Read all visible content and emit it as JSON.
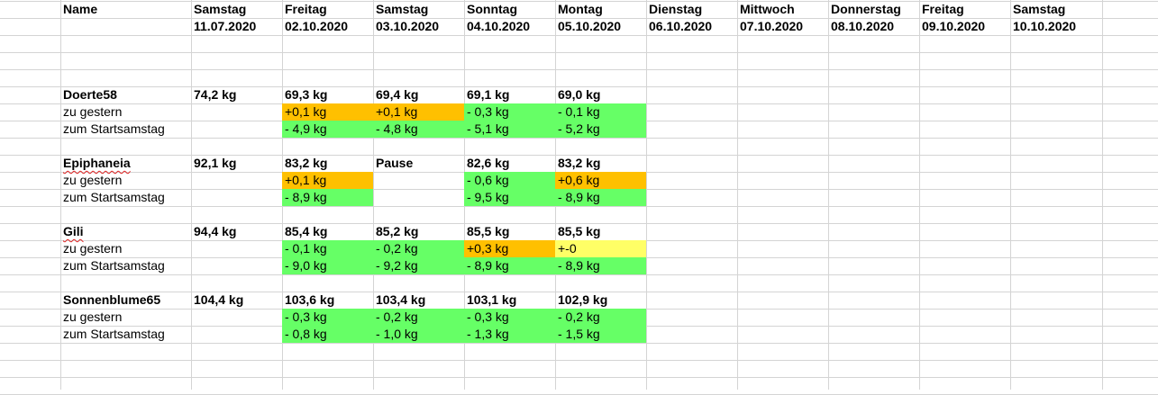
{
  "header": {
    "name_label": "Name",
    "days": [
      {
        "weekday": "Samstag",
        "date": "11.07.2020"
      },
      {
        "weekday": "Freitag",
        "date": "02.10.2020"
      },
      {
        "weekday": "Samstag",
        "date": "03.10.2020"
      },
      {
        "weekday": "Sonntag",
        "date": "04.10.2020"
      },
      {
        "weekday": "Montag",
        "date": "05.10.2020"
      },
      {
        "weekday": "Dienstag",
        "date": "06.10.2020"
      },
      {
        "weekday": "Mittwoch",
        "date": "07.10.2020"
      },
      {
        "weekday": "Donnerstag",
        "date": "08.10.2020"
      },
      {
        "weekday": "Freitag",
        "date": "09.10.2020"
      },
      {
        "weekday": "Samstag",
        "date": "10.10.2020"
      }
    ]
  },
  "colors": {
    "up": "#ffc000",
    "down": "#66ff66",
    "same": "#ffff66",
    "grid": "#d4d4d4"
  },
  "participants": [
    {
      "name": "Doerte58",
      "name_flagged": false,
      "weights": [
        "74,2 kg",
        "69,3 kg",
        "69,4 kg",
        "69,1 kg",
        "69,0 kg",
        "",
        "",
        "",
        "",
        ""
      ],
      "rows": [
        {
          "label": "zu gestern",
          "cells": [
            {
              "t": "",
              "c": ""
            },
            {
              "t": "+0,1 kg",
              "c": "up"
            },
            {
              "t": "+0,1 kg",
              "c": "up"
            },
            {
              "t": "- 0,3 kg",
              "c": "down"
            },
            {
              "t": "- 0,1 kg",
              "c": "down"
            }
          ]
        },
        {
          "label": "zum Startsamstag",
          "cells": [
            {
              "t": "",
              "c": ""
            },
            {
              "t": "- 4,9 kg",
              "c": "down"
            },
            {
              "t": "- 4,8 kg",
              "c": "down"
            },
            {
              "t": "- 5,1 kg",
              "c": "down"
            },
            {
              "t": "- 5,2 kg",
              "c": "down"
            }
          ]
        }
      ]
    },
    {
      "name": "Epiphaneia",
      "name_flagged": true,
      "weights": [
        "92,1 kg",
        "83,2 kg",
        "Pause",
        "82,6 kg",
        "83,2 kg",
        "",
        "",
        "",
        "",
        ""
      ],
      "rows": [
        {
          "label": "zu gestern",
          "cells": [
            {
              "t": "",
              "c": ""
            },
            {
              "t": "+0,1 kg",
              "c": "up"
            },
            {
              "t": "",
              "c": ""
            },
            {
              "t": "- 0,6 kg",
              "c": "down"
            },
            {
              "t": "+0,6 kg",
              "c": "up"
            }
          ]
        },
        {
          "label": "zum Startsamstag",
          "cells": [
            {
              "t": "",
              "c": ""
            },
            {
              "t": "- 8,9 kg",
              "c": "down"
            },
            {
              "t": "",
              "c": ""
            },
            {
              "t": "- 9,5 kg",
              "c": "down"
            },
            {
              "t": "- 8,9 kg",
              "c": "down"
            }
          ]
        }
      ]
    },
    {
      "name": "Gili",
      "name_flagged": true,
      "weights": [
        "94,4 kg",
        "85,4 kg",
        "85,2 kg",
        "85,5 kg",
        "85,5 kg",
        "",
        "",
        "",
        "",
        ""
      ],
      "rows": [
        {
          "label": "zu gestern",
          "cells": [
            {
              "t": "",
              "c": ""
            },
            {
              "t": "- 0,1 kg",
              "c": "down"
            },
            {
              "t": "- 0,2 kg",
              "c": "down"
            },
            {
              "t": "+0,3 kg",
              "c": "up"
            },
            {
              "t": "+-0",
              "c": "same"
            }
          ]
        },
        {
          "label": "zum Startsamstag",
          "cells": [
            {
              "t": "",
              "c": ""
            },
            {
              "t": "- 9,0 kg",
              "c": "down"
            },
            {
              "t": "- 9,2 kg",
              "c": "down"
            },
            {
              "t": "- 8,9 kg",
              "c": "down"
            },
            {
              "t": "- 8,9 kg",
              "c": "down"
            }
          ]
        }
      ]
    },
    {
      "name": "Sonnenblume65",
      "name_flagged": false,
      "weights": [
        "104,4 kg",
        "103,6 kg",
        "103,4 kg",
        "103,1 kg",
        "102,9 kg",
        "",
        "",
        "",
        "",
        ""
      ],
      "rows": [
        {
          "label": "zu gestern",
          "cells": [
            {
              "t": "",
              "c": ""
            },
            {
              "t": "- 0,3 kg",
              "c": "down"
            },
            {
              "t": "- 0,2 kg",
              "c": "down"
            },
            {
              "t": "- 0,3 kg",
              "c": "down"
            },
            {
              "t": "- 0,2 kg",
              "c": "down"
            }
          ]
        },
        {
          "label": "zum Startsamstag",
          "cells": [
            {
              "t": "",
              "c": ""
            },
            {
              "t": "- 0,8 kg",
              "c": "down"
            },
            {
              "t": "- 1,0 kg",
              "c": "down"
            },
            {
              "t": "- 1,3 kg",
              "c": "down"
            },
            {
              "t": "- 1,5 kg",
              "c": "down"
            }
          ]
        }
      ]
    }
  ]
}
